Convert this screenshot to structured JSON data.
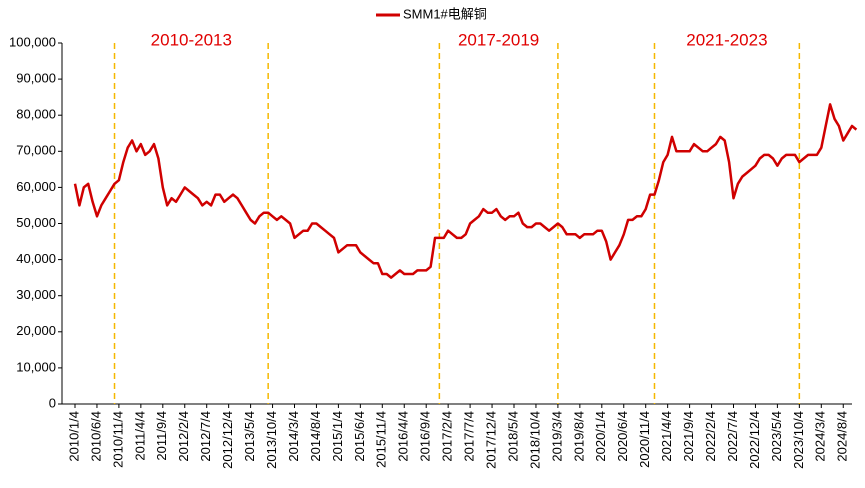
{
  "chart_data": {
    "type": "line",
    "x": [
      "2010/1/4",
      "2010/2/4",
      "2010/3/4",
      "2010/4/4",
      "2010/5/4",
      "2010/6/4",
      "2010/7/4",
      "2010/8/4",
      "2010/9/4",
      "2010/10/4",
      "2010/11/4",
      "2010/12/4",
      "2011/1/4",
      "2011/2/4",
      "2011/3/4",
      "2011/4/4",
      "2011/5/4",
      "2011/6/4",
      "2011/7/4",
      "2011/8/4",
      "2011/9/4",
      "2011/10/4",
      "2011/11/4",
      "2011/12/4",
      "2012/1/4",
      "2012/2/4",
      "2012/3/4",
      "2012/4/4",
      "2012/5/4",
      "2012/6/4",
      "2012/7/4",
      "2012/8/4",
      "2012/9/4",
      "2012/10/4",
      "2012/11/4",
      "2012/12/4",
      "2013/1/4",
      "2013/2/4",
      "2013/3/4",
      "2013/4/4",
      "2013/5/4",
      "2013/6/4",
      "2013/7/4",
      "2013/8/4",
      "2013/9/4",
      "2013/10/4",
      "2013/11/4",
      "2013/12/4",
      "2014/1/4",
      "2014/2/4",
      "2014/3/4",
      "2014/4/4",
      "2014/5/4",
      "2014/6/4",
      "2014/7/4",
      "2014/8/4",
      "2014/9/4",
      "2014/10/4",
      "2014/11/4",
      "2014/12/4",
      "2015/1/4",
      "2015/2/4",
      "2015/3/4",
      "2015/4/4",
      "2015/5/4",
      "2015/6/4",
      "2015/7/4",
      "2015/8/4",
      "2015/9/4",
      "2015/10/4",
      "2015/11/4",
      "2015/12/4",
      "2016/1/4",
      "2016/2/4",
      "2016/3/4",
      "2016/4/4",
      "2016/5/4",
      "2016/6/4",
      "2016/7/4",
      "2016/8/4",
      "2016/9/4",
      "2016/10/4",
      "2016/11/4",
      "2016/12/4",
      "2017/1/4",
      "2017/2/4",
      "2017/3/4",
      "2017/4/4",
      "2017/5/4",
      "2017/6/4",
      "2017/7/4",
      "2017/8/4",
      "2017/9/4",
      "2017/10/4",
      "2017/11/4",
      "2017/12/4",
      "2018/1/4",
      "2018/2/4",
      "2018/3/4",
      "2018/4/4",
      "2018/5/4",
      "2018/6/4",
      "2018/7/4",
      "2018/8/4",
      "2018/9/4",
      "2018/10/4",
      "2018/11/4",
      "2018/12/4",
      "2019/1/4",
      "2019/2/4",
      "2019/3/4",
      "2019/4/4",
      "2019/5/4",
      "2019/6/4",
      "2019/7/4",
      "2019/8/4",
      "2019/9/4",
      "2019/10/4",
      "2019/11/4",
      "2019/12/4",
      "2020/1/4",
      "2020/2/4",
      "2020/3/4",
      "2020/4/4",
      "2020/5/4",
      "2020/6/4",
      "2020/7/4",
      "2020/8/4",
      "2020/9/4",
      "2020/10/4",
      "2020/11/4",
      "2020/12/4",
      "2021/1/4",
      "2021/2/4",
      "2021/3/4",
      "2021/4/4",
      "2021/5/4",
      "2021/6/4",
      "2021/7/4",
      "2021/8/4",
      "2021/9/4",
      "2021/10/4",
      "2021/11/4",
      "2021/12/4",
      "2022/1/4",
      "2022/2/4",
      "2022/3/4",
      "2022/4/4",
      "2022/5/4",
      "2022/6/4",
      "2022/7/4",
      "2022/8/4",
      "2022/9/4",
      "2022/10/4",
      "2022/11/4",
      "2022/12/4",
      "2023/1/4",
      "2023/2/4",
      "2023/3/4",
      "2023/4/4",
      "2023/5/4",
      "2023/6/4",
      "2023/7/4",
      "2023/8/4",
      "2023/9/4",
      "2023/10/4",
      "2023/11/4",
      "2023/12/4",
      "2024/1/4",
      "2024/2/4",
      "2024/3/4",
      "2024/4/4",
      "2024/5/4",
      "2024/6/4",
      "2024/7/4",
      "2024/8/4",
      "2024/9/4",
      "2024/10/4",
      "2024/11/4"
    ],
    "series": [
      {
        "name": "SMM1#电解铜",
        "color": "#d00000",
        "values": [
          61000,
          55000,
          60000,
          61000,
          56000,
          52000,
          55000,
          57000,
          59000,
          61000,
          62000,
          67000,
          71000,
          73000,
          70000,
          72000,
          69000,
          70000,
          72000,
          68000,
          60000,
          55000,
          57000,
          56000,
          58000,
          60000,
          59000,
          58000,
          57000,
          55000,
          56000,
          55000,
          58000,
          58000,
          56000,
          57000,
          58000,
          57000,
          55000,
          53000,
          51000,
          50000,
          52000,
          53000,
          53000,
          52000,
          51000,
          52000,
          51000,
          50000,
          46000,
          47000,
          48000,
          48000,
          50000,
          50000,
          49000,
          48000,
          47000,
          46000,
          42000,
          43000,
          44000,
          44000,
          44000,
          42000,
          41000,
          40000,
          39000,
          39000,
          36000,
          36000,
          35000,
          36000,
          37000,
          36000,
          36000,
          36000,
          37000,
          37000,
          37000,
          38000,
          46000,
          46000,
          46000,
          48000,
          47000,
          46000,
          46000,
          47000,
          50000,
          51000,
          52000,
          54000,
          53000,
          53000,
          54000,
          52000,
          51000,
          52000,
          52000,
          53000,
          50000,
          49000,
          49000,
          50000,
          50000,
          49000,
          48000,
          49000,
          50000,
          49000,
          47000,
          47000,
          47000,
          46000,
          47000,
          47000,
          47000,
          48000,
          48000,
          45000,
          40000,
          42000,
          44000,
          47000,
          51000,
          51000,
          52000,
          52000,
          54000,
          58000,
          58000,
          62000,
          67000,
          69000,
          74000,
          70000,
          70000,
          70000,
          70000,
          72000,
          71000,
          70000,
          70000,
          71000,
          72000,
          74000,
          73000,
          67000,
          57000,
          61000,
          63000,
          64000,
          65000,
          66000,
          68000,
          69000,
          69000,
          68000,
          66000,
          68000,
          69000,
          69000,
          69000,
          67000,
          68000,
          69000,
          69000,
          69000,
          71000,
          77000,
          83000,
          79000,
          77000,
          73000,
          75000,
          77000,
          76000
        ]
      }
    ],
    "xticks": [
      "2010/1/4",
      "2010/6/4",
      "2010/11/4",
      "2011/4/4",
      "2011/9/4",
      "2012/2/4",
      "2012/7/4",
      "2012/12/4",
      "2013/5/4",
      "2013/10/4",
      "2014/3/4",
      "2014/8/4",
      "2015/1/4",
      "2015/6/4",
      "2015/11/4",
      "2016/4/4",
      "2016/9/4",
      "2017/2/4",
      "2017/7/4",
      "2017/12/4",
      "2018/5/4",
      "2018/10/4",
      "2019/3/4",
      "2019/8/4",
      "2020/1/4",
      "2020/6/4",
      "2020/11/4",
      "2021/4/4",
      "2021/9/4",
      "2022/2/4",
      "2022/7/4",
      "2022/12/4",
      "2023/5/4",
      "2023/10/4",
      "2024/3/4",
      "2024/8/4"
    ],
    "ylim": [
      0,
      100000
    ],
    "yticks": [
      0,
      {
        "value": 10000,
        "label": "10,000"
      },
      {
        "value": 20000,
        "label": "20,000"
      },
      {
        "value": 30000,
        "label": "30,000"
      },
      {
        "value": 40000,
        "label": "40,000"
      },
      {
        "value": 50000,
        "label": "50,000"
      },
      {
        "value": 60000,
        "label": "60,000"
      },
      {
        "value": 70000,
        "label": "70,000"
      },
      {
        "value": 80000,
        "label": "80,000"
      },
      {
        "value": 90000,
        "label": "90,000"
      },
      {
        "value": 100000,
        "label": "100,000"
      }
    ],
    "periods": [
      {
        "label": "2010-2013",
        "start": "2010/10/4",
        "end": "2013/9/4"
      },
      {
        "label": "2017-2019",
        "start": "2016/12/4",
        "end": "2019/3/4"
      },
      {
        "label": "2021-2023",
        "start": "2021/1/4",
        "end": "2023/10/4"
      }
    ],
    "legend": "top"
  }
}
